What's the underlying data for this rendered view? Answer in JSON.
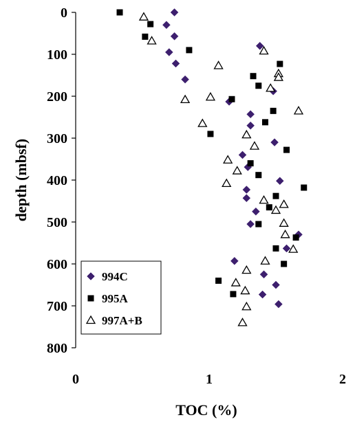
{
  "chart_data": {
    "type": "scatter",
    "title": "",
    "xlabel": "TOC (%)",
    "ylabel": "depth (mbsf)",
    "xlim": [
      0,
      2
    ],
    "ylim": [
      0,
      800
    ],
    "y_inverted": true,
    "x_ticks": [
      {
        "value": 0,
        "label": "0"
      },
      {
        "value": 1,
        "label": "1"
      },
      {
        "value": 2,
        "label": "2"
      }
    ],
    "y_ticks": [
      {
        "value": 0,
        "label": "0"
      },
      {
        "value": 100,
        "label": "100"
      },
      {
        "value": 200,
        "label": "200"
      },
      {
        "value": 300,
        "label": "300"
      },
      {
        "value": 400,
        "label": "400"
      },
      {
        "value": 500,
        "label": "500"
      },
      {
        "value": 600,
        "label": "600"
      },
      {
        "value": 700,
        "label": "700"
      },
      {
        "value": 800,
        "label": "800"
      }
    ],
    "grid": false,
    "legend": {
      "position": "bottom-left-inside"
    },
    "series": [
      {
        "name": "994C",
        "marker": "diamond",
        "color": "#3d1f6e",
        "points": [
          {
            "x": 0.74,
            "y": 0
          },
          {
            "x": 0.68,
            "y": 30
          },
          {
            "x": 0.74,
            "y": 57
          },
          {
            "x": 0.7,
            "y": 95
          },
          {
            "x": 0.75,
            "y": 122
          },
          {
            "x": 0.82,
            "y": 160
          },
          {
            "x": 1.38,
            "y": 80
          },
          {
            "x": 1.48,
            "y": 188
          },
          {
            "x": 1.15,
            "y": 213
          },
          {
            "x": 1.31,
            "y": 243
          },
          {
            "x": 1.31,
            "y": 270
          },
          {
            "x": 1.49,
            "y": 310
          },
          {
            "x": 1.25,
            "y": 340
          },
          {
            "x": 1.29,
            "y": 369
          },
          {
            "x": 1.53,
            "y": 402
          },
          {
            "x": 1.28,
            "y": 423
          },
          {
            "x": 1.28,
            "y": 443
          },
          {
            "x": 1.35,
            "y": 475
          },
          {
            "x": 1.31,
            "y": 505
          },
          {
            "x": 1.67,
            "y": 530
          },
          {
            "x": 1.58,
            "y": 563
          },
          {
            "x": 1.19,
            "y": 593
          },
          {
            "x": 1.41,
            "y": 625
          },
          {
            "x": 1.5,
            "y": 650
          },
          {
            "x": 1.4,
            "y": 673
          },
          {
            "x": 1.52,
            "y": 696
          }
        ]
      },
      {
        "name": "995A",
        "marker": "square",
        "color": "#000000",
        "points": [
          {
            "x": 0.33,
            "y": 0
          },
          {
            "x": 0.56,
            "y": 28
          },
          {
            "x": 0.52,
            "y": 58
          },
          {
            "x": 0.85,
            "y": 90
          },
          {
            "x": 1.53,
            "y": 123
          },
          {
            "x": 1.33,
            "y": 152
          },
          {
            "x": 1.37,
            "y": 175
          },
          {
            "x": 1.17,
            "y": 207
          },
          {
            "x": 1.48,
            "y": 235
          },
          {
            "x": 1.42,
            "y": 262
          },
          {
            "x": 1.01,
            "y": 290
          },
          {
            "x": 1.58,
            "y": 328
          },
          {
            "x": 1.31,
            "y": 360
          },
          {
            "x": 1.37,
            "y": 388
          },
          {
            "x": 1.71,
            "y": 418
          },
          {
            "x": 1.5,
            "y": 438
          },
          {
            "x": 1.45,
            "y": 465
          },
          {
            "x": 1.37,
            "y": 505
          },
          {
            "x": 1.65,
            "y": 537
          },
          {
            "x": 1.5,
            "y": 563
          },
          {
            "x": 1.56,
            "y": 600
          },
          {
            "x": 1.07,
            "y": 640
          },
          {
            "x": 1.18,
            "y": 672
          }
        ]
      },
      {
        "name": "997A+B",
        "marker": "triangle",
        "color": "#000000",
        "points": [
          {
            "x": 0.51,
            "y": 11
          },
          {
            "x": 0.57,
            "y": 68
          },
          {
            "x": 1.41,
            "y": 92
          },
          {
            "x": 1.07,
            "y": 127
          },
          {
            "x": 1.52,
            "y": 146
          },
          {
            "x": 1.52,
            "y": 155
          },
          {
            "x": 1.46,
            "y": 181
          },
          {
            "x": 0.82,
            "y": 208
          },
          {
            "x": 1.01,
            "y": 202
          },
          {
            "x": 1.67,
            "y": 235
          },
          {
            "x": 0.95,
            "y": 265
          },
          {
            "x": 1.28,
            "y": 292
          },
          {
            "x": 1.34,
            "y": 319
          },
          {
            "x": 1.14,
            "y": 352
          },
          {
            "x": 1.21,
            "y": 378
          },
          {
            "x": 1.13,
            "y": 408
          },
          {
            "x": 1.41,
            "y": 448
          },
          {
            "x": 1.56,
            "y": 458
          },
          {
            "x": 1.5,
            "y": 472
          },
          {
            "x": 1.56,
            "y": 503
          },
          {
            "x": 1.57,
            "y": 530
          },
          {
            "x": 1.63,
            "y": 565
          },
          {
            "x": 1.42,
            "y": 593
          },
          {
            "x": 1.28,
            "y": 615
          },
          {
            "x": 1.2,
            "y": 645
          },
          {
            "x": 1.27,
            "y": 664
          },
          {
            "x": 1.28,
            "y": 702
          },
          {
            "x": 1.25,
            "y": 740
          }
        ]
      }
    ]
  }
}
